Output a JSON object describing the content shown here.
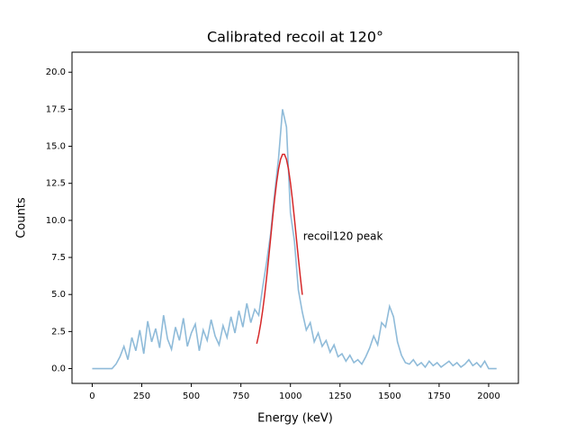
{
  "chart_data": {
    "type": "line",
    "title": "Calibrated recoil at 120°",
    "xlabel": "Energy (keV)",
    "ylabel": "Counts",
    "xlim": [
      -102,
      2150
    ],
    "ylim": [
      -1.0,
      21.35
    ],
    "xticks": [
      0,
      250,
      500,
      750,
      1000,
      1250,
      1500,
      1750,
      2000
    ],
    "yticks": [
      {
        "value": 0,
        "label": "0.0"
      },
      {
        "value": 2.5,
        "label": "2.5"
      },
      {
        "value": 5,
        "label": "5.0"
      },
      {
        "value": 7.5,
        "label": "7.5"
      },
      {
        "value": 10,
        "label": "10.0"
      },
      {
        "value": 12.5,
        "label": "12.5"
      },
      {
        "value": 15,
        "label": "15.0"
      },
      {
        "value": 17.5,
        "label": "17.5"
      },
      {
        "value": 20,
        "label": "20.0"
      }
    ],
    "series": [
      {
        "color": "#8fbbd9",
        "x": [
          0,
          20,
          40,
          60,
          80,
          100,
          120,
          140,
          160,
          180,
          200,
          220,
          240,
          260,
          280,
          300,
          320,
          340,
          360,
          380,
          400,
          420,
          440,
          460,
          480,
          500,
          520,
          540,
          560,
          580,
          600,
          620,
          640,
          660,
          680,
          700,
          720,
          740,
          760,
          780,
          800,
          820,
          840,
          860,
          880,
          900,
          920,
          940,
          960,
          980,
          1000,
          1020,
          1040,
          1060,
          1080,
          1100,
          1120,
          1140,
          1160,
          1180,
          1200,
          1220,
          1240,
          1260,
          1280,
          1300,
          1320,
          1340,
          1360,
          1380,
          1400,
          1420,
          1440,
          1460,
          1480,
          1500,
          1520,
          1540,
          1560,
          1580,
          1600,
          1620,
          1640,
          1660,
          1680,
          1700,
          1720,
          1740,
          1760,
          1780,
          1800,
          1820,
          1840,
          1860,
          1880,
          1900,
          1920,
          1940,
          1960,
          1980,
          2000,
          2020,
          2040
        ],
        "values": [
          0,
          0,
          0,
          0,
          0,
          0,
          0.3,
          0.8,
          1.5,
          0.6,
          2.1,
          1.2,
          2.6,
          1.0,
          3.2,
          1.8,
          2.7,
          1.4,
          3.6,
          2.0,
          1.3,
          2.8,
          1.9,
          3.4,
          1.5,
          2.4,
          3.0,
          1.2,
          2.6,
          1.9,
          3.3,
          2.2,
          1.6,
          2.9,
          2.1,
          3.5,
          2.4,
          3.9,
          2.8,
          4.4,
          3.1,
          4.0,
          3.6,
          5.5,
          7.2,
          9.1,
          11.8,
          14.2,
          17.5,
          16.3,
          10.5,
          8.6,
          5.3,
          3.8,
          2.6,
          3.1,
          1.8,
          2.4,
          1.5,
          1.9,
          1.1,
          1.6,
          0.8,
          1.0,
          0.5,
          0.9,
          0.4,
          0.6,
          0.3,
          0.8,
          1.4,
          2.2,
          1.6,
          3.1,
          2.8,
          4.2,
          3.5,
          1.8,
          0.9,
          0.4,
          0.3,
          0.6,
          0.2,
          0.4,
          0.1,
          0.5,
          0.2,
          0.4,
          0.1,
          0.3,
          0.5,
          0.2,
          0.4,
          0.1,
          0.3,
          0.6,
          0.2,
          0.4,
          0.1,
          0.5,
          0,
          0,
          0
        ]
      },
      {
        "color": "#d62728",
        "x": [
          830,
          840,
          850,
          860,
          870,
          880,
          890,
          900,
          910,
          920,
          930,
          940,
          950,
          960,
          970,
          980,
          990,
          1000,
          1010,
          1020,
          1030,
          1040,
          1050,
          1060
        ],
        "values": [
          1.68,
          2.28,
          3.03,
          3.93,
          4.98,
          6.17,
          7.45,
          8.79,
          10.14,
          11.41,
          12.54,
          13.47,
          14.12,
          14.46,
          14.46,
          14.12,
          13.47,
          12.54,
          11.41,
          10.14,
          8.79,
          7.45,
          6.17,
          4.98
        ]
      }
    ],
    "annotation": {
      "text": "recoil120 peak",
      "x": 1064,
      "y": 8.9,
      "color": "#ff0000"
    }
  }
}
